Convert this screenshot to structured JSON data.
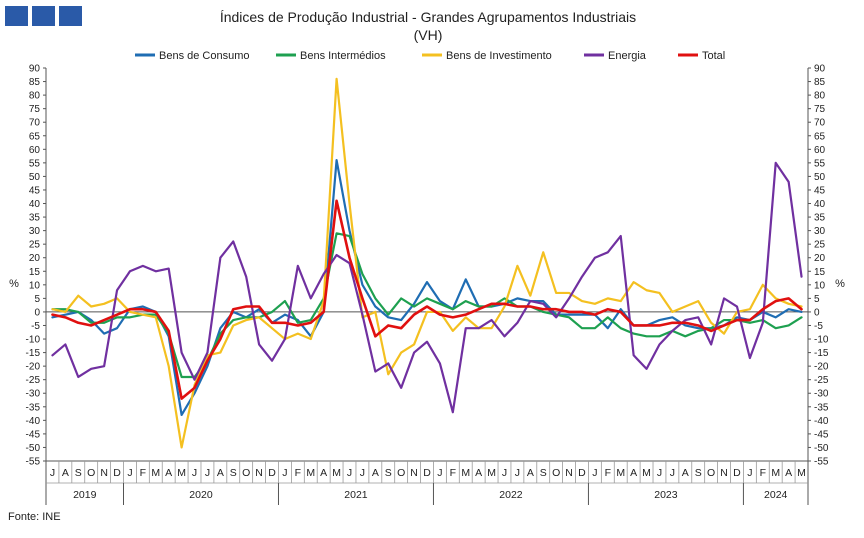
{
  "chart_data": {
    "type": "line",
    "title": "Índices de Produção Industrial - Grandes Agrupamentos Industriais",
    "subtitle": "(VH)",
    "ylabel": "%",
    "ylim": [
      -55,
      90
    ],
    "ytick_step": 5,
    "grid": false,
    "legend_position": "top",
    "month_labels": [
      "J",
      "A",
      "S",
      "O",
      "N",
      "D",
      "J",
      "F",
      "M",
      "A",
      "M",
      "J",
      "J",
      "A",
      "S",
      "O",
      "N",
      "D",
      "J",
      "F",
      "M",
      "A",
      "M",
      "J",
      "J",
      "A",
      "S",
      "O",
      "N",
      "D",
      "J",
      "F",
      "M",
      "A",
      "M",
      "J",
      "J",
      "A",
      "S",
      "O",
      "N",
      "D",
      "J",
      "F",
      "M",
      "A",
      "M",
      "J",
      "J",
      "A",
      "S",
      "O",
      "N",
      "D",
      "J",
      "F",
      "M",
      "A",
      "M"
    ],
    "years": [
      {
        "label": "2019",
        "start": 0,
        "count": 6
      },
      {
        "label": "2020",
        "start": 6,
        "count": 12
      },
      {
        "label": "2021",
        "start": 18,
        "count": 12
      },
      {
        "label": "2022",
        "start": 30,
        "count": 12
      },
      {
        "label": "2023",
        "start": 42,
        "count": 12
      },
      {
        "label": "2024",
        "start": 54,
        "count": 5
      }
    ],
    "series": [
      {
        "name": "Bens de Consumo",
        "color": "#1f6db3",
        "values": [
          -2,
          -1,
          0,
          -3,
          -8,
          -6,
          1,
          2,
          0,
          -9,
          -38,
          -30,
          -20,
          -6,
          0,
          -2,
          1,
          -4,
          -1,
          -3,
          -9,
          0,
          56,
          30,
          10,
          2,
          -2,
          -3,
          3,
          11,
          4,
          1,
          12,
          2,
          2,
          3,
          5,
          4,
          4,
          -1,
          -1,
          -1,
          -1,
          -6,
          1,
          -5,
          -5,
          -3,
          -2,
          -5,
          -6,
          -6,
          -5,
          -2,
          -3,
          0,
          -2,
          1,
          0
        ]
      },
      {
        "name": "Bens Intermédios",
        "color": "#1ea050",
        "values": [
          1,
          1,
          0,
          -4,
          -4,
          -2,
          -2,
          -1,
          -1,
          -8,
          -24,
          -24,
          -18,
          -8,
          -3,
          -2,
          -2,
          0,
          4,
          -4,
          -3,
          5,
          29,
          28,
          14,
          5,
          -1,
          5,
          2,
          5,
          3,
          1,
          4,
          2,
          2,
          5,
          2,
          2,
          0,
          -1,
          -2,
          -6,
          -6,
          -2,
          -6,
          -8,
          -9,
          -9,
          -7,
          -9,
          -7,
          -6,
          -3,
          -3,
          -4,
          -3,
          -6,
          -5,
          -2
        ]
      },
      {
        "name": "Bens de Investimento",
        "color": "#f4c020",
        "values": [
          1,
          0,
          6,
          2,
          3,
          5,
          0,
          -1,
          -2,
          -20,
          -50,
          -27,
          -16,
          -15,
          -5,
          -3,
          -2,
          -6,
          -10,
          -8,
          -10,
          4,
          86,
          40,
          -2,
          0,
          -23,
          -15,
          -12,
          0,
          0,
          -7,
          -2,
          -6,
          -6,
          2,
          17,
          6,
          22,
          7,
          7,
          4,
          3,
          5,
          4,
          11,
          8,
          7,
          0,
          2,
          4,
          -4,
          -8,
          0,
          1,
          10,
          5,
          3,
          2
        ]
      },
      {
        "name": "Energia",
        "color": "#7030a0",
        "values": [
          -16,
          -12,
          -24,
          -21,
          -20,
          8,
          15,
          17,
          15,
          16,
          -15,
          -25,
          -15,
          20,
          26,
          13,
          -12,
          -18,
          -10,
          17,
          5,
          14,
          21,
          18,
          -1,
          -22,
          -19,
          -28,
          -15,
          -11,
          -19,
          -37,
          -6,
          -6,
          -3,
          -9,
          -4,
          4,
          3,
          -2,
          5,
          13,
          20,
          22,
          28,
          -16,
          -21,
          -12,
          -7,
          -3,
          -2,
          -12,
          5,
          2,
          -17,
          -4,
          55,
          48,
          13
        ]
      },
      {
        "name": "Total",
        "color": "#e01010",
        "values": [
          -1,
          -2,
          -4,
          -5,
          -3,
          -1,
          1,
          1,
          0,
          -7,
          -32,
          -28,
          -18,
          -10,
          1,
          2,
          2,
          -4,
          -4,
          -5,
          -4,
          0,
          41,
          20,
          5,
          -9,
          -5,
          -6,
          -1,
          2,
          -1,
          -2,
          -1,
          1,
          3,
          3,
          2,
          2,
          1,
          1,
          0,
          0,
          -1,
          1,
          0,
          -5,
          -5,
          -5,
          -4,
          -4,
          -5,
          -7,
          -5,
          -3,
          -3,
          1,
          4,
          5,
          1
        ]
      }
    ]
  },
  "footer": {
    "source": "Fonte: INE"
  }
}
